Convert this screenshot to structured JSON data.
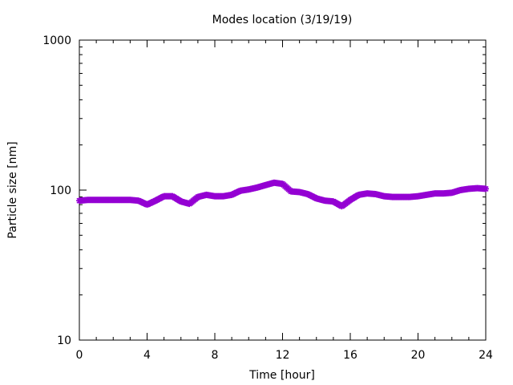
{
  "chart_data": {
    "type": "scatter",
    "title": "Modes location (3/19/19)",
    "xlabel": "Time [hour]",
    "ylabel": "Particle size [nm]",
    "xlim": [
      0,
      24
    ],
    "ylim": [
      10,
      1000
    ],
    "yscale": "log",
    "grid": false,
    "x_ticks": [
      0,
      4,
      8,
      12,
      16,
      20,
      24
    ],
    "x_tick_labels": [
      "0",
      "4",
      "8",
      "12",
      "16",
      "20",
      "24"
    ],
    "y_ticks": [
      10,
      100,
      1000
    ],
    "y_tick_labels": [
      "10",
      "100",
      "1000"
    ],
    "series": [
      {
        "color": "#9400D3",
        "marker": "star",
        "x": [
          0.0,
          0.5,
          1.0,
          1.5,
          2.0,
          2.5,
          3.0,
          3.5,
          4.0,
          4.5,
          5.0,
          5.5,
          6.0,
          6.5,
          7.0,
          7.5,
          8.0,
          8.5,
          9.0,
          9.5,
          10.0,
          10.5,
          11.0,
          11.5,
          12.0,
          12.5,
          13.0,
          13.5,
          14.0,
          14.5,
          15.0,
          15.5,
          16.0,
          16.5,
          17.0,
          17.5,
          18.0,
          18.5,
          19.0,
          19.5,
          20.0,
          20.5,
          21.0,
          21.5,
          22.0,
          22.5,
          23.0,
          23.5,
          24.0
        ],
        "values": [
          85,
          86,
          86,
          86,
          86,
          86,
          86,
          85,
          80,
          85,
          91,
          91,
          84,
          81,
          90,
          93,
          91,
          91,
          93,
          99,
          101,
          104,
          108,
          112,
          110,
          98,
          97,
          94,
          88,
          85,
          84,
          78,
          86,
          93,
          95,
          94,
          91,
          90,
          90,
          90,
          91,
          93,
          95,
          95,
          96,
          100,
          102,
          103,
          102
        ]
      }
    ]
  }
}
